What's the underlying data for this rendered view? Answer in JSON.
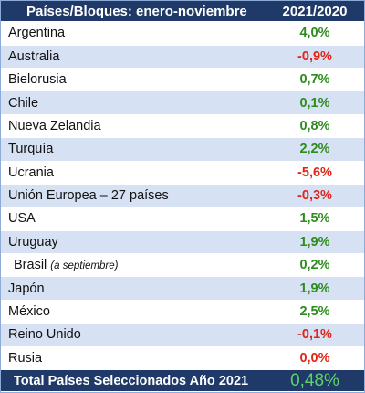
{
  "table": {
    "header": {
      "col1": "Países/Bloques: enero-noviembre",
      "col2": "2021/2020"
    },
    "rows": [
      {
        "name": "Argentina",
        "note": "",
        "value": "4,0%",
        "sign": "pos"
      },
      {
        "name": "Australia",
        "note": "",
        "value": "-0,9%",
        "sign": "neg"
      },
      {
        "name": "Bielorusia",
        "note": "",
        "value": "0,7%",
        "sign": "pos"
      },
      {
        "name": "Chile",
        "note": "",
        "value": "0,1%",
        "sign": "pos"
      },
      {
        "name": "Nueva Zelandia",
        "note": "",
        "value": "0,8%",
        "sign": "pos"
      },
      {
        "name": "Turquía",
        "note": "",
        "value": "2,2%",
        "sign": "pos"
      },
      {
        "name": "Ucrania",
        "note": "",
        "value": "-5,6%",
        "sign": "neg"
      },
      {
        "name": "Unión Europea – 27 países",
        "note": "",
        "value": "-0,3%",
        "sign": "neg"
      },
      {
        "name": "USA",
        "note": "",
        "value": "1,5%",
        "sign": "pos"
      },
      {
        "name": "Uruguay",
        "note": "",
        "value": "1,9%",
        "sign": "pos"
      },
      {
        "name": "Brasil",
        "note": "(a septiembre)",
        "value": "0,2%",
        "sign": "pos"
      },
      {
        "name": "Japón",
        "note": "",
        "value": "1,9%",
        "sign": "pos"
      },
      {
        "name": "México",
        "note": "",
        "value": "2,5%",
        "sign": "pos"
      },
      {
        "name": "Reino Unido",
        "note": "",
        "value": "-0,1%",
        "sign": "neg"
      },
      {
        "name": "Rusia",
        "note": "",
        "value": "0,0%",
        "sign": "zero"
      }
    ],
    "footer": {
      "label": "Total Países Seleccionados Año 2021",
      "value": "0,48%"
    }
  },
  "colors": {
    "header_bg": "#1f3a68",
    "stripe": "#d6e2f4",
    "positive": "#2e8b1e",
    "negative": "#e02418",
    "total": "#5fd36a"
  }
}
